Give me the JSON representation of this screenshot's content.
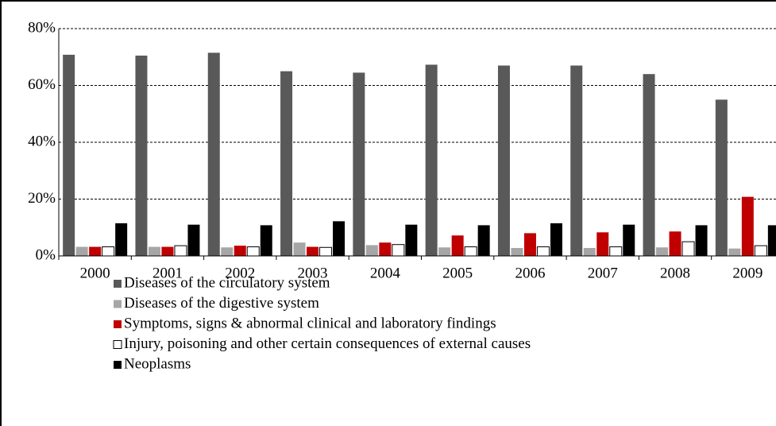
{
  "chart_data": {
    "type": "bar",
    "categories": [
      "2000",
      "2001",
      "2002",
      "2003",
      "2004",
      "2005",
      "2006",
      "2007",
      "2008",
      "2009"
    ],
    "series": [
      {
        "name": "Diseases of the circulatory system",
        "color": "#595959",
        "values": [
          70.8,
          70.5,
          71.5,
          65,
          64.5,
          67.3,
          67,
          67,
          64,
          55
        ]
      },
      {
        "name": "Diseases of the digestive system",
        "color": "#a6a6a6",
        "values": [
          3.2,
          3.2,
          3,
          4.7,
          3.8,
          3,
          2.8,
          2.8,
          3,
          2.6
        ]
      },
      {
        "name": "Symptoms, signs & abnormal clinical and laboratory findings",
        "color": "#c00000",
        "values": [
          3.2,
          3.2,
          3.6,
          3.2,
          4.7,
          7.2,
          8,
          8.3,
          8.6,
          20.8
        ]
      },
      {
        "name": "Injury, poisoning and other certain consequences of external causes",
        "color": "#ffffff",
        "values": [
          3.2,
          3.6,
          3.2,
          3,
          4,
          3.2,
          3.2,
          3.2,
          5,
          3.6
        ]
      },
      {
        "name": "Neoplasms",
        "color": "#000000",
        "values": [
          11.5,
          11,
          10.8,
          12.2,
          11,
          10.8,
          11.5,
          11,
          10.8,
          10.8
        ]
      }
    ],
    "ylim": [
      0,
      80
    ],
    "yticks": [
      {
        "value": 0,
        "label": "0%"
      },
      {
        "value": 20,
        "label": "20%"
      },
      {
        "value": 40,
        "label": "40%"
      },
      {
        "value": 60,
        "label": "60%"
      },
      {
        "value": 80,
        "label": "80%"
      }
    ],
    "grid": true,
    "legend": "bottom"
  }
}
